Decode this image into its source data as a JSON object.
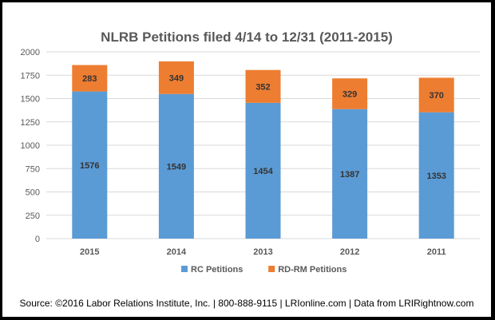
{
  "chart_data": {
    "type": "bar",
    "stacked": true,
    "title": "NLRB Petitions filed 4/14 to 12/31 (2011-2015)",
    "categories": [
      "2015",
      "2014",
      "2013",
      "2012",
      "2011"
    ],
    "series": [
      {
        "name": "RC Petitions",
        "color": "#5b9bd5",
        "values": [
          1576,
          1549,
          1454,
          1387,
          1353
        ]
      },
      {
        "name": "RD-RM Petitions",
        "color": "#ed7d31",
        "values": [
          283,
          349,
          352,
          329,
          370
        ]
      }
    ],
    "ylim": [
      0,
      2000
    ],
    "yticks": [
      "0",
      "250",
      "500",
      "750",
      "1000",
      "1250",
      "1500",
      "1750",
      "2000"
    ],
    "grid": true,
    "legend": "bottom"
  },
  "footer": {
    "source": "Source: ©2016 Labor Relations Institute, Inc. | 800-888-9115 | LRIonline.com | Data from LRIRightnow.com"
  }
}
